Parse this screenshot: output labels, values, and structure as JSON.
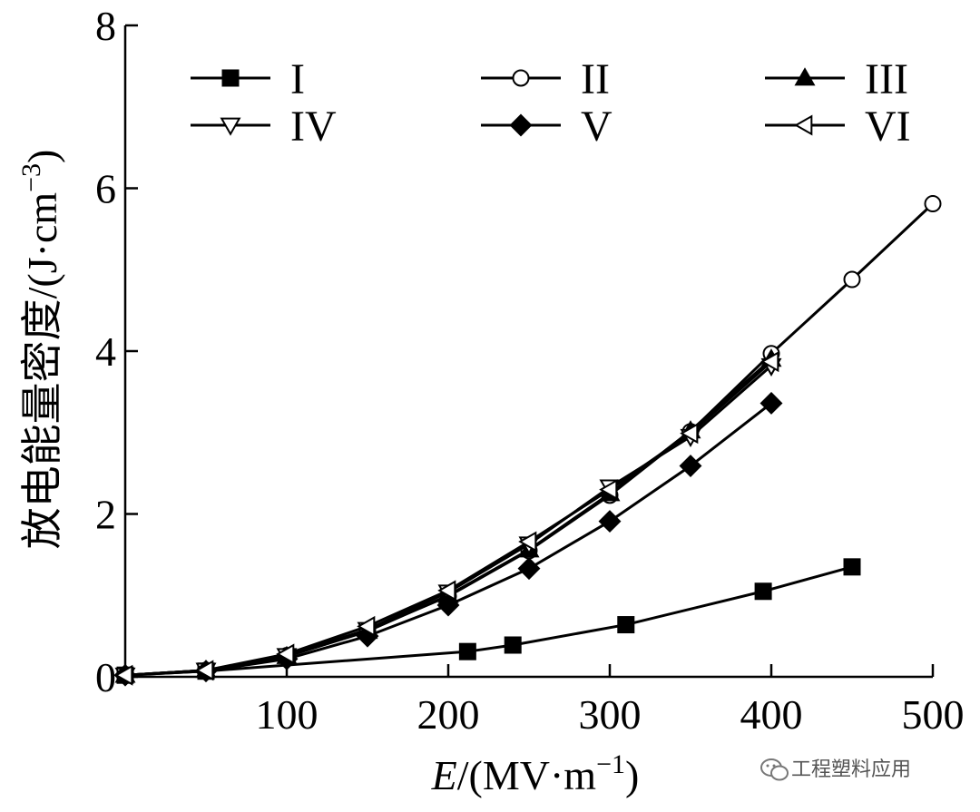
{
  "chart_data": {
    "type": "line",
    "title": "",
    "xlabel_italic": "E",
    "xlabel_rest": "/(MV·m",
    "xlabel_sup": "−1",
    "xlabel_close": ")",
    "ylabel_main": "放电能量密度/(J·cm",
    "ylabel_sup": "−3",
    "ylabel_close": ")",
    "xlim": [
      0,
      500
    ],
    "ylim": [
      0,
      8
    ],
    "xticks": [
      100,
      200,
      300,
      400,
      500
    ],
    "xtick_labels": [
      "100",
      "200",
      "300",
      "400",
      "500"
    ],
    "yticks": [
      0,
      2,
      4,
      6,
      8
    ],
    "ytick_labels": [
      "0",
      "2",
      "4",
      "6",
      "8"
    ],
    "grid": false,
    "legend_position": "top",
    "series": [
      {
        "name": "I",
        "marker": "square-filled",
        "x": [
          0,
          50,
          212,
          240,
          310,
          395,
          450
        ],
        "y": [
          0.02,
          0.07,
          0.31,
          0.39,
          0.64,
          1.05,
          1.35
        ]
      },
      {
        "name": "II",
        "marker": "circle-open",
        "x": [
          0,
          50,
          100,
          150,
          200,
          250,
          300,
          350,
          400,
          450,
          500
        ],
        "y": [
          0.02,
          0.08,
          0.26,
          0.57,
          0.99,
          1.55,
          2.23,
          3.01,
          3.97,
          4.88,
          5.81
        ]
      },
      {
        "name": "III",
        "marker": "triangle-up-filled",
        "x": [
          0,
          50,
          100,
          150,
          200,
          250,
          300,
          350,
          400
        ],
        "y": [
          0.02,
          0.08,
          0.25,
          0.56,
          1.0,
          1.56,
          2.25,
          3.02,
          3.9
        ]
      },
      {
        "name": "IV",
        "marker": "triangle-down-open",
        "x": [
          0,
          50,
          100,
          150,
          200,
          250,
          300,
          350,
          400
        ],
        "y": [
          0.02,
          0.08,
          0.26,
          0.58,
          1.04,
          1.63,
          2.33,
          2.95,
          3.82
        ]
      },
      {
        "name": "V",
        "marker": "diamond-filled",
        "x": [
          0,
          50,
          100,
          150,
          200,
          250,
          300,
          350,
          400
        ],
        "y": [
          0.02,
          0.07,
          0.22,
          0.5,
          0.88,
          1.33,
          1.91,
          2.59,
          3.36
        ]
      },
      {
        "name": "VI",
        "marker": "triangle-left-open",
        "x": [
          0,
          50,
          100,
          150,
          200,
          250,
          300,
          350,
          400
        ],
        "y": [
          0.02,
          0.08,
          0.28,
          0.62,
          1.06,
          1.66,
          2.3,
          2.99,
          3.87
        ]
      }
    ]
  },
  "watermark": {
    "icon": "wechat-icon",
    "text": "工程塑料应用"
  },
  "colors": {
    "line": "#000000",
    "background": "#ffffff",
    "watermark": "#555555"
  }
}
